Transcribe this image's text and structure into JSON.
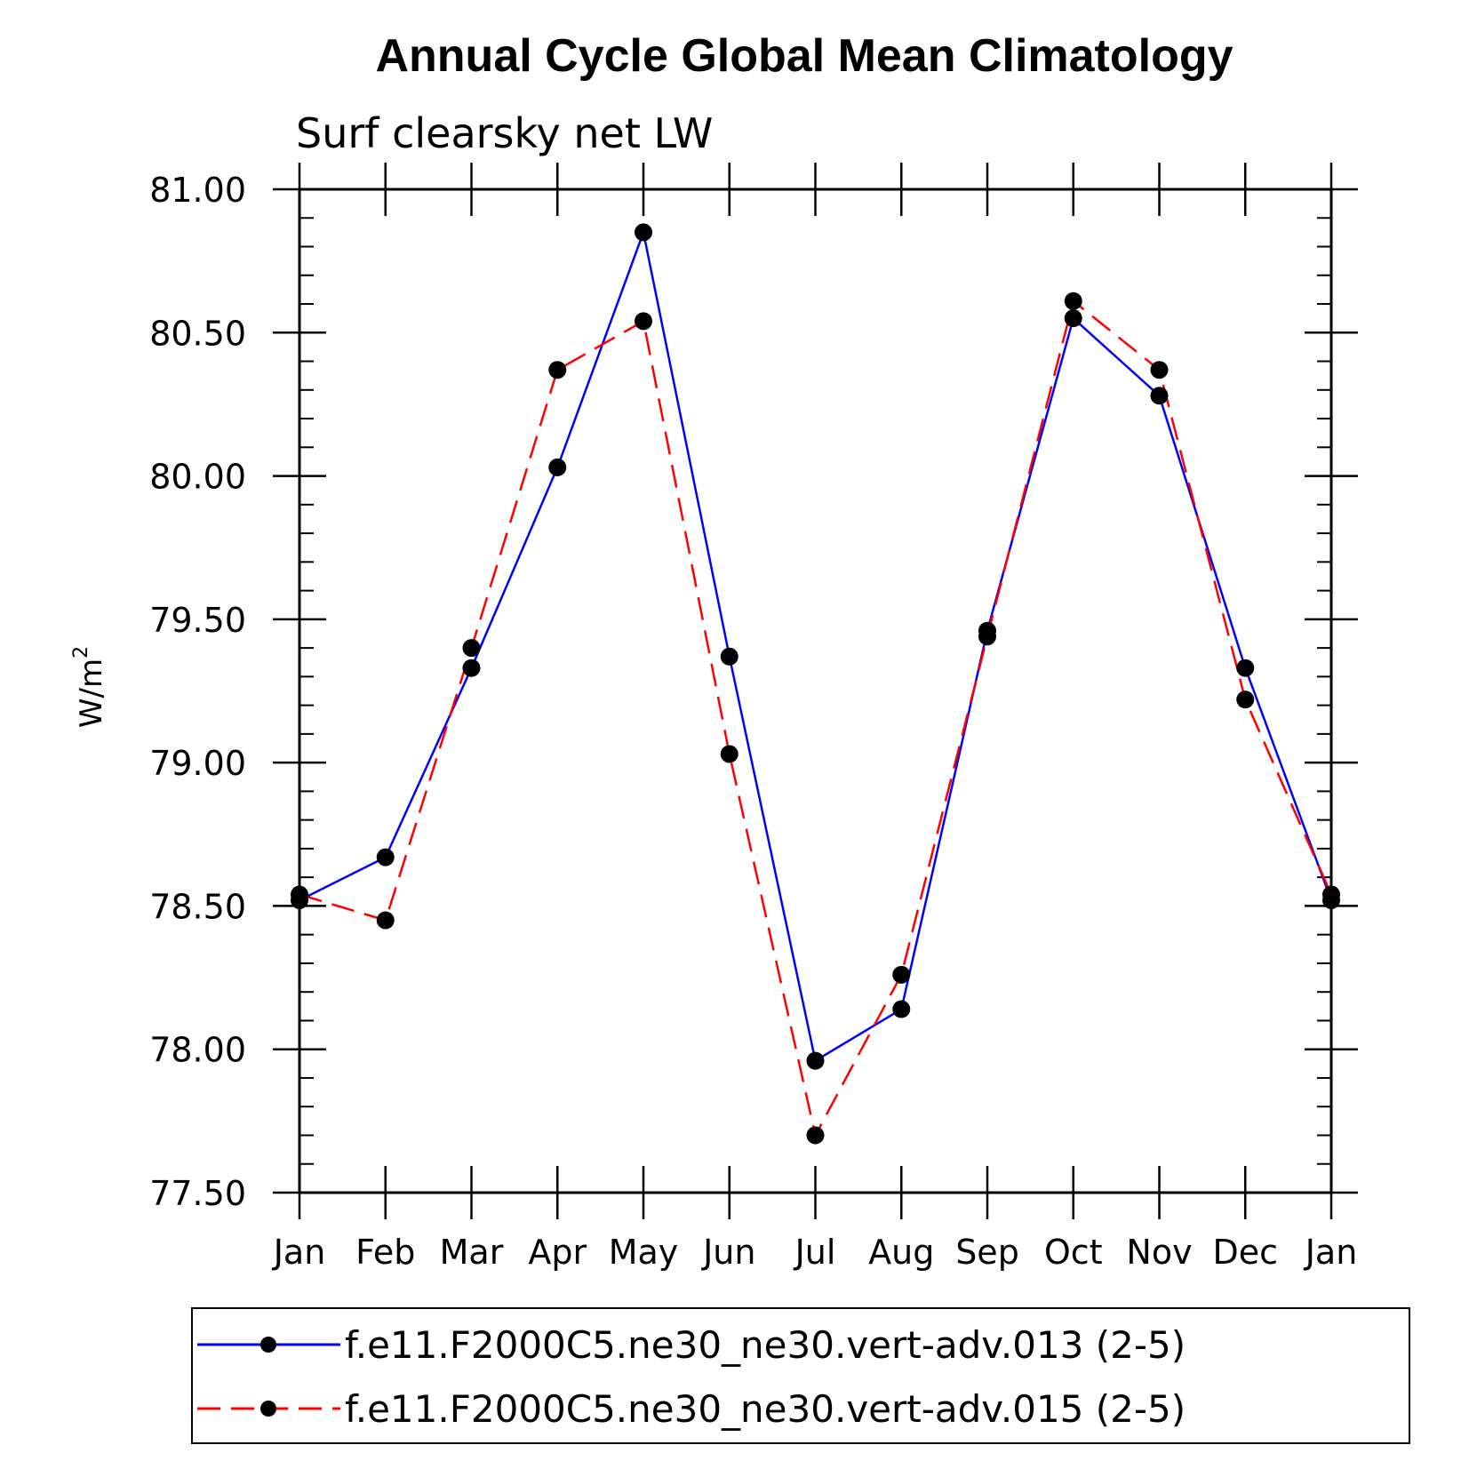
{
  "chart_data": {
    "type": "line",
    "title": "Annual Cycle Global Mean Climatology",
    "subtitle": "Surf clearsky net LW",
    "ylabel": "W/m",
    "ylabel_superscript": "2",
    "xlabel": "",
    "categories": [
      "Jan",
      "Feb",
      "Mar",
      "Apr",
      "May",
      "Jun",
      "Jul",
      "Aug",
      "Sep",
      "Oct",
      "Nov",
      "Dec",
      "Jan"
    ],
    "ylim": [
      77.5,
      81.0
    ],
    "yticks": [
      "77.50",
      "78.00",
      "78.50",
      "79.00",
      "79.50",
      "80.00",
      "80.50",
      "81.00"
    ],
    "grid": false,
    "legend_position": "bottom",
    "series": [
      {
        "name": "f.e11.F2000C5.ne30_ne30.vert-adv.013 (2-5)",
        "color": "#0000ff",
        "dash": "solid",
        "marker": "filled-circle",
        "values": [
          78.52,
          78.67,
          79.33,
          80.03,
          80.85,
          79.37,
          77.96,
          78.14,
          79.46,
          80.55,
          80.28,
          79.33,
          78.52
        ]
      },
      {
        "name": "f.e11.F2000C5.ne30_ne30.vert-adv.015 (2-5)",
        "color": "#ff0000",
        "dash": "dashed",
        "marker": "filled-circle",
        "values": [
          78.54,
          78.45,
          79.4,
          80.37,
          80.54,
          79.03,
          77.7,
          78.26,
          79.44,
          80.61,
          80.37,
          79.22,
          78.54
        ]
      }
    ]
  }
}
